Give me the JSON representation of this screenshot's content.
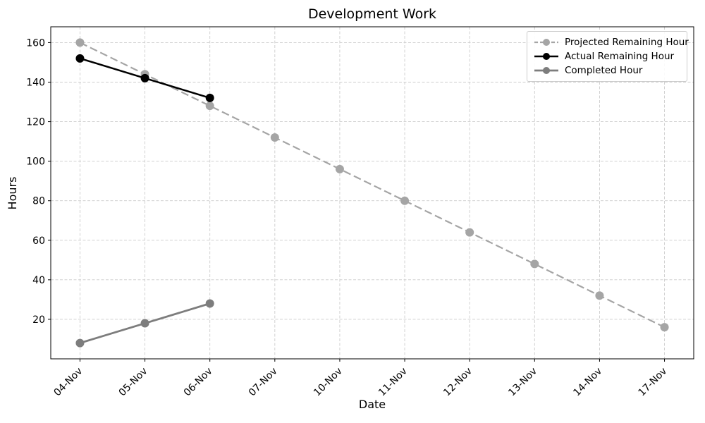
{
  "chart_data": {
    "type": "line",
    "title": "Development Work",
    "xlabel": "Date",
    "ylabel": "Hours",
    "categories": [
      "04-Nov",
      "05-Nov",
      "06-Nov",
      "07-Nov",
      "10-Nov",
      "11-Nov",
      "12-Nov",
      "13-Nov",
      "14-Nov",
      "17-Nov"
    ],
    "series": [
      {
        "name": "Projected Remaining Hour",
        "color": "#a5a5a5",
        "line_style": "dashed",
        "line_width": 2.2,
        "marker": "circle",
        "values": [
          160,
          144,
          128,
          112,
          96,
          80,
          64,
          48,
          32,
          16
        ]
      },
      {
        "name": "Actual Remaining Hour",
        "color": "#000000",
        "line_style": "solid",
        "line_width": 2.5,
        "marker": "circle",
        "values": [
          152,
          142,
          132
        ]
      },
      {
        "name": "Completed Hour",
        "color": "#7d7d7d",
        "line_style": "solid",
        "line_width": 2.8,
        "marker": "circle",
        "values": [
          8,
          18,
          28
        ]
      }
    ],
    "yticks": [
      20,
      40,
      60,
      80,
      100,
      120,
      140,
      160
    ],
    "ylim": [
      0,
      168
    ],
    "grid": true,
    "legend_position": "upper right",
    "x_tick_rotation": 45
  },
  "colors": {
    "background": "#ffffff",
    "grid": "#cccccc",
    "spine": "#000000",
    "text": "#000000",
    "legend_border": "#cccccc"
  }
}
